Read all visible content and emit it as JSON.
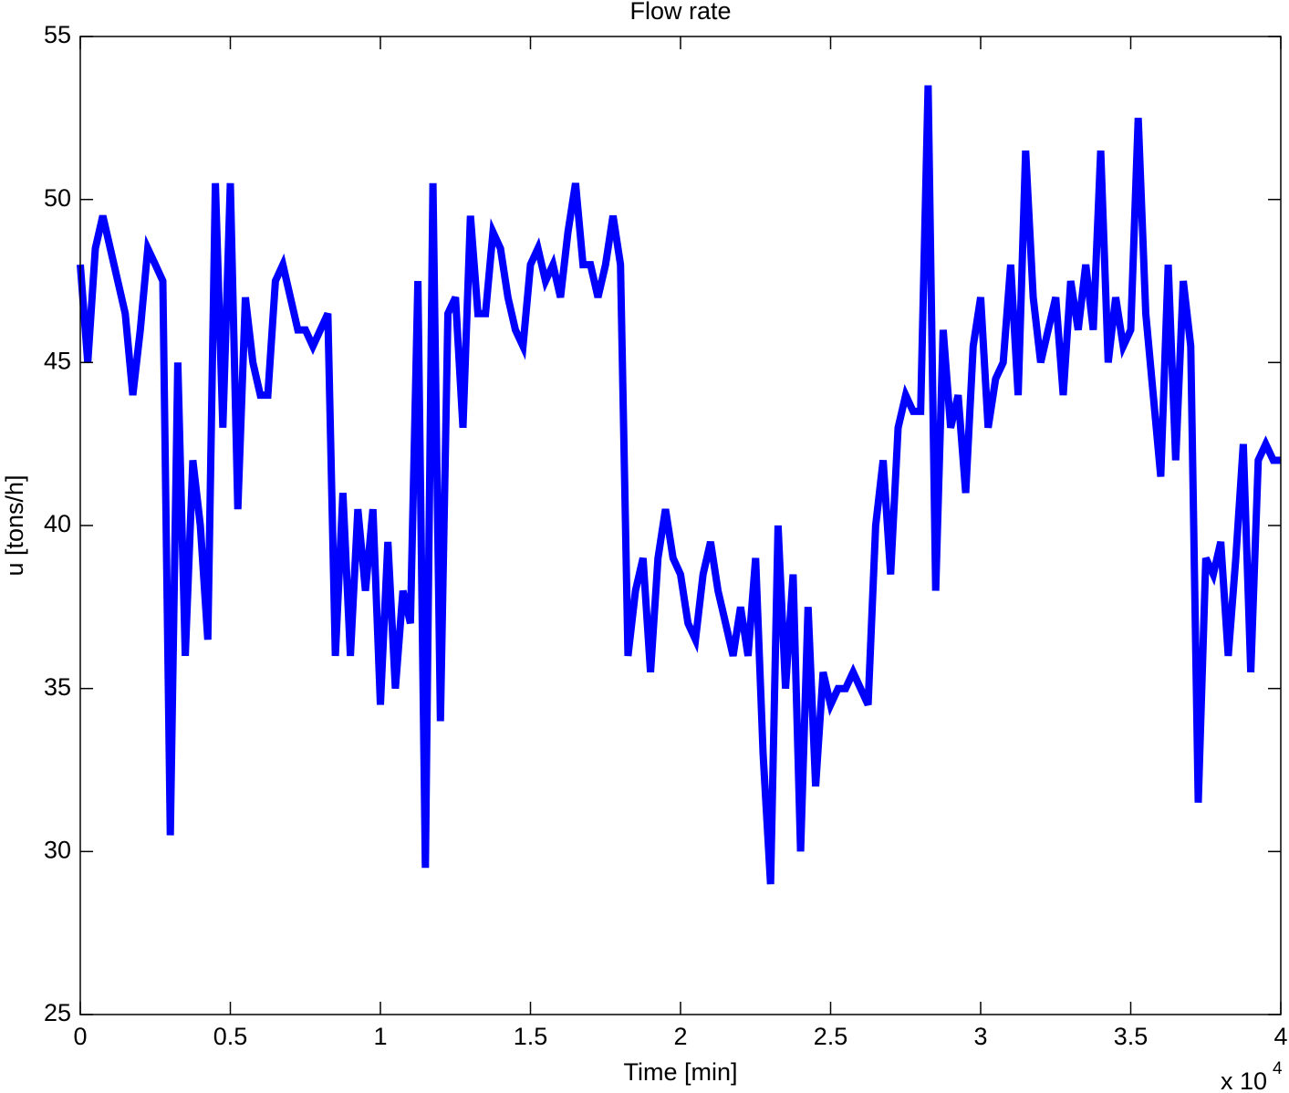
{
  "chart_data": {
    "type": "line",
    "title": "Flow rate",
    "x_label": "Time [min]",
    "y_label": "u [tons/h]",
    "x_multiplier": "x 10",
    "x_multiplier_exponent": "4",
    "xlim": [
      0,
      40000
    ],
    "ylim": [
      25,
      55
    ],
    "xticks": [
      {
        "value": 0,
        "label": "0"
      },
      {
        "value": 5000,
        "label": "0.5"
      },
      {
        "value": 10000,
        "label": "1"
      },
      {
        "value": 15000,
        "label": "1.5"
      },
      {
        "value": 20000,
        "label": "2"
      },
      {
        "value": 25000,
        "label": "2.5"
      },
      {
        "value": 30000,
        "label": "3"
      },
      {
        "value": 35000,
        "label": "3.5"
      },
      {
        "value": 40000,
        "label": "4"
      }
    ],
    "yticks": [
      25,
      30,
      35,
      40,
      45,
      50,
      55
    ],
    "grid": false,
    "series": [
      {
        "color": "#0000ff",
        "x": [
          0,
          250,
          500,
          750,
          1000,
          1250,
          1500,
          1750,
          2000,
          2250,
          2500,
          2750,
          3000,
          3250,
          3500,
          3750,
          4000,
          4250,
          4500,
          4750,
          5000,
          5250,
          5500,
          5750,
          6000,
          6250,
          6500,
          6750,
          7000,
          7250,
          7500,
          7750,
          8000,
          8250,
          8500,
          8750,
          9000,
          9250,
          9500,
          9750,
          10000,
          10250,
          10500,
          10750,
          11000,
          11250,
          11500,
          11750,
          12000,
          12250,
          12500,
          12750,
          13000,
          13250,
          13500,
          13750,
          14000,
          14250,
          14500,
          14750,
          15000,
          15250,
          15500,
          15750,
          16000,
          16250,
          16500,
          16750,
          17000,
          17250,
          17500,
          17750,
          18000,
          18250,
          18500,
          18750,
          19000,
          19250,
          19500,
          19750,
          20000,
          20250,
          20500,
          20750,
          21000,
          21250,
          21500,
          21750,
          22000,
          22250,
          22500,
          22750,
          23000,
          23250,
          23500,
          23750,
          24000,
          24250,
          24500,
          24750,
          25000,
          25250,
          25500,
          25750,
          26000,
          26250,
          26500,
          26750,
          27000,
          27250,
          27500,
          27750,
          28000,
          28250,
          28500,
          28750,
          29000,
          29250,
          29500,
          29750,
          30000,
          30250,
          30500,
          30750,
          31000,
          31250,
          31500,
          31750,
          32000,
          32250,
          32500,
          32750,
          33000,
          33250,
          33500,
          33750,
          34000,
          34250,
          34500,
          34750,
          35000,
          35250,
          35500,
          35750,
          36000,
          36250,
          36500,
          36750,
          37000,
          37250,
          37500,
          37750,
          38000,
          38250,
          38500,
          38750,
          39000,
          39250,
          39500,
          39750,
          40000
        ],
        "values": [
          48,
          45,
          48.5,
          49.5,
          48.5,
          47.5,
          46.5,
          44,
          46,
          48.5,
          48,
          47.5,
          30.5,
          45,
          36,
          42,
          40,
          36.5,
          50.5,
          43,
          50.5,
          40.5,
          47,
          45,
          44,
          44,
          47.5,
          48,
          47,
          46,
          46,
          45.5,
          46,
          46.5,
          36,
          41,
          36,
          40.5,
          38,
          40.5,
          34.5,
          39.5,
          35,
          38,
          37,
          47.5,
          29.5,
          50.5,
          34,
          46.5,
          47,
          43,
          49.5,
          46.5,
          46.5,
          49,
          48.5,
          47,
          46,
          45.5,
          48,
          48.5,
          47.5,
          48,
          47,
          49,
          50.5,
          48,
          48,
          47,
          48,
          49.5,
          48,
          36,
          38,
          39,
          35.5,
          39,
          40.5,
          39,
          38.5,
          37,
          36.5,
          38.5,
          39.5,
          38,
          37,
          36,
          37.5,
          36,
          39,
          33,
          29,
          40,
          35,
          38.5,
          30,
          37.5,
          32,
          35.5,
          34.5,
          35,
          35,
          35.5,
          35,
          34.5,
          40,
          42,
          38.5,
          43,
          44,
          43.5,
          43.5,
          53.5,
          38,
          46,
          43,
          44,
          41,
          45.5,
          47,
          43,
          44.5,
          45,
          48,
          44,
          51.5,
          47,
          45,
          46,
          47,
          44,
          47.5,
          46,
          48,
          46,
          51.5,
          45,
          47,
          45.5,
          46,
          52.5,
          46.5,
          44,
          41.5,
          48,
          42,
          47.5,
          45.5,
          31.5,
          39,
          38.5,
          39.5,
          36,
          39,
          42.5,
          35.5,
          42,
          42.5,
          42,
          42
        ]
      }
    ]
  }
}
